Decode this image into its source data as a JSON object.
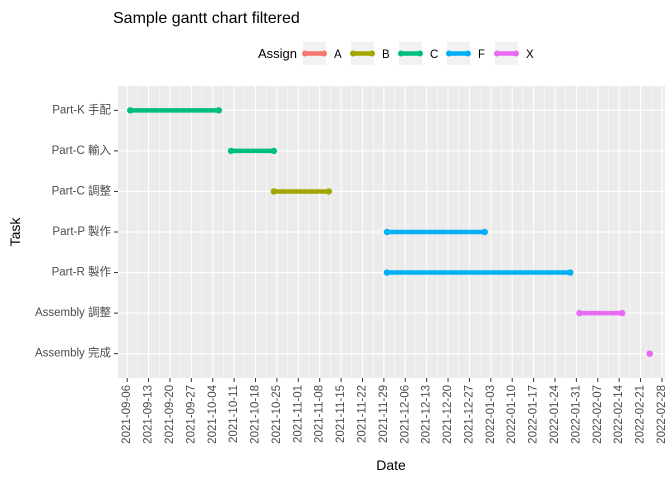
{
  "chart_data": {
    "type": "gantt",
    "title": "Sample gantt chart filtered",
    "xlabel": "Date",
    "ylabel": "Task",
    "legend": {
      "title": "Assign",
      "position": "top",
      "items": [
        {
          "label": "A",
          "color": "#F8766D"
        },
        {
          "label": "B",
          "color": "#A3A500"
        },
        {
          "label": "C",
          "color": "#00BF7D"
        },
        {
          "label": "F",
          "color": "#00B0F6"
        },
        {
          "label": "X",
          "color": "#E76BF3"
        }
      ]
    },
    "x_ticks": [
      "2021-09-06",
      "2021-09-13",
      "2021-09-20",
      "2021-09-27",
      "2021-10-04",
      "2021-10-11",
      "2021-10-18",
      "2021-10-25",
      "2021-11-01",
      "2021-11-08",
      "2021-11-15",
      "2021-11-22",
      "2021-11-29",
      "2021-12-06",
      "2021-12-13",
      "2021-12-20",
      "2021-12-27",
      "2022-01-03",
      "2022-01-10",
      "2022-01-17",
      "2022-01-24",
      "2022-01-31",
      "2022-02-07",
      "2022-02-14",
      "2022-02-21",
      "2022-02-28"
    ],
    "xlim": [
      "2021-09-03",
      "2022-03-01"
    ],
    "grid": true,
    "tasks": [
      {
        "task": "Part-K 手配",
        "assign": "C",
        "start": "2021-09-07",
        "end": "2021-10-06"
      },
      {
        "task": "Part-C 輸入",
        "assign": "C",
        "start": "2021-10-10",
        "end": "2021-10-24"
      },
      {
        "task": "Part-C 調整",
        "assign": "B",
        "start": "2021-10-24",
        "end": "2021-11-11"
      },
      {
        "task": "Part-P 製作",
        "assign": "F",
        "start": "2021-11-30",
        "end": "2022-01-01"
      },
      {
        "task": "Part-R 製作",
        "assign": "F",
        "start": "2021-11-30",
        "end": "2022-01-29"
      },
      {
        "task": "Assembly 調整",
        "assign": "X",
        "start": "2022-02-01",
        "end": "2022-02-15"
      },
      {
        "task": "Assembly 完成",
        "assign": "X",
        "start": "2022-02-24",
        "end": "2022-02-24"
      }
    ]
  }
}
